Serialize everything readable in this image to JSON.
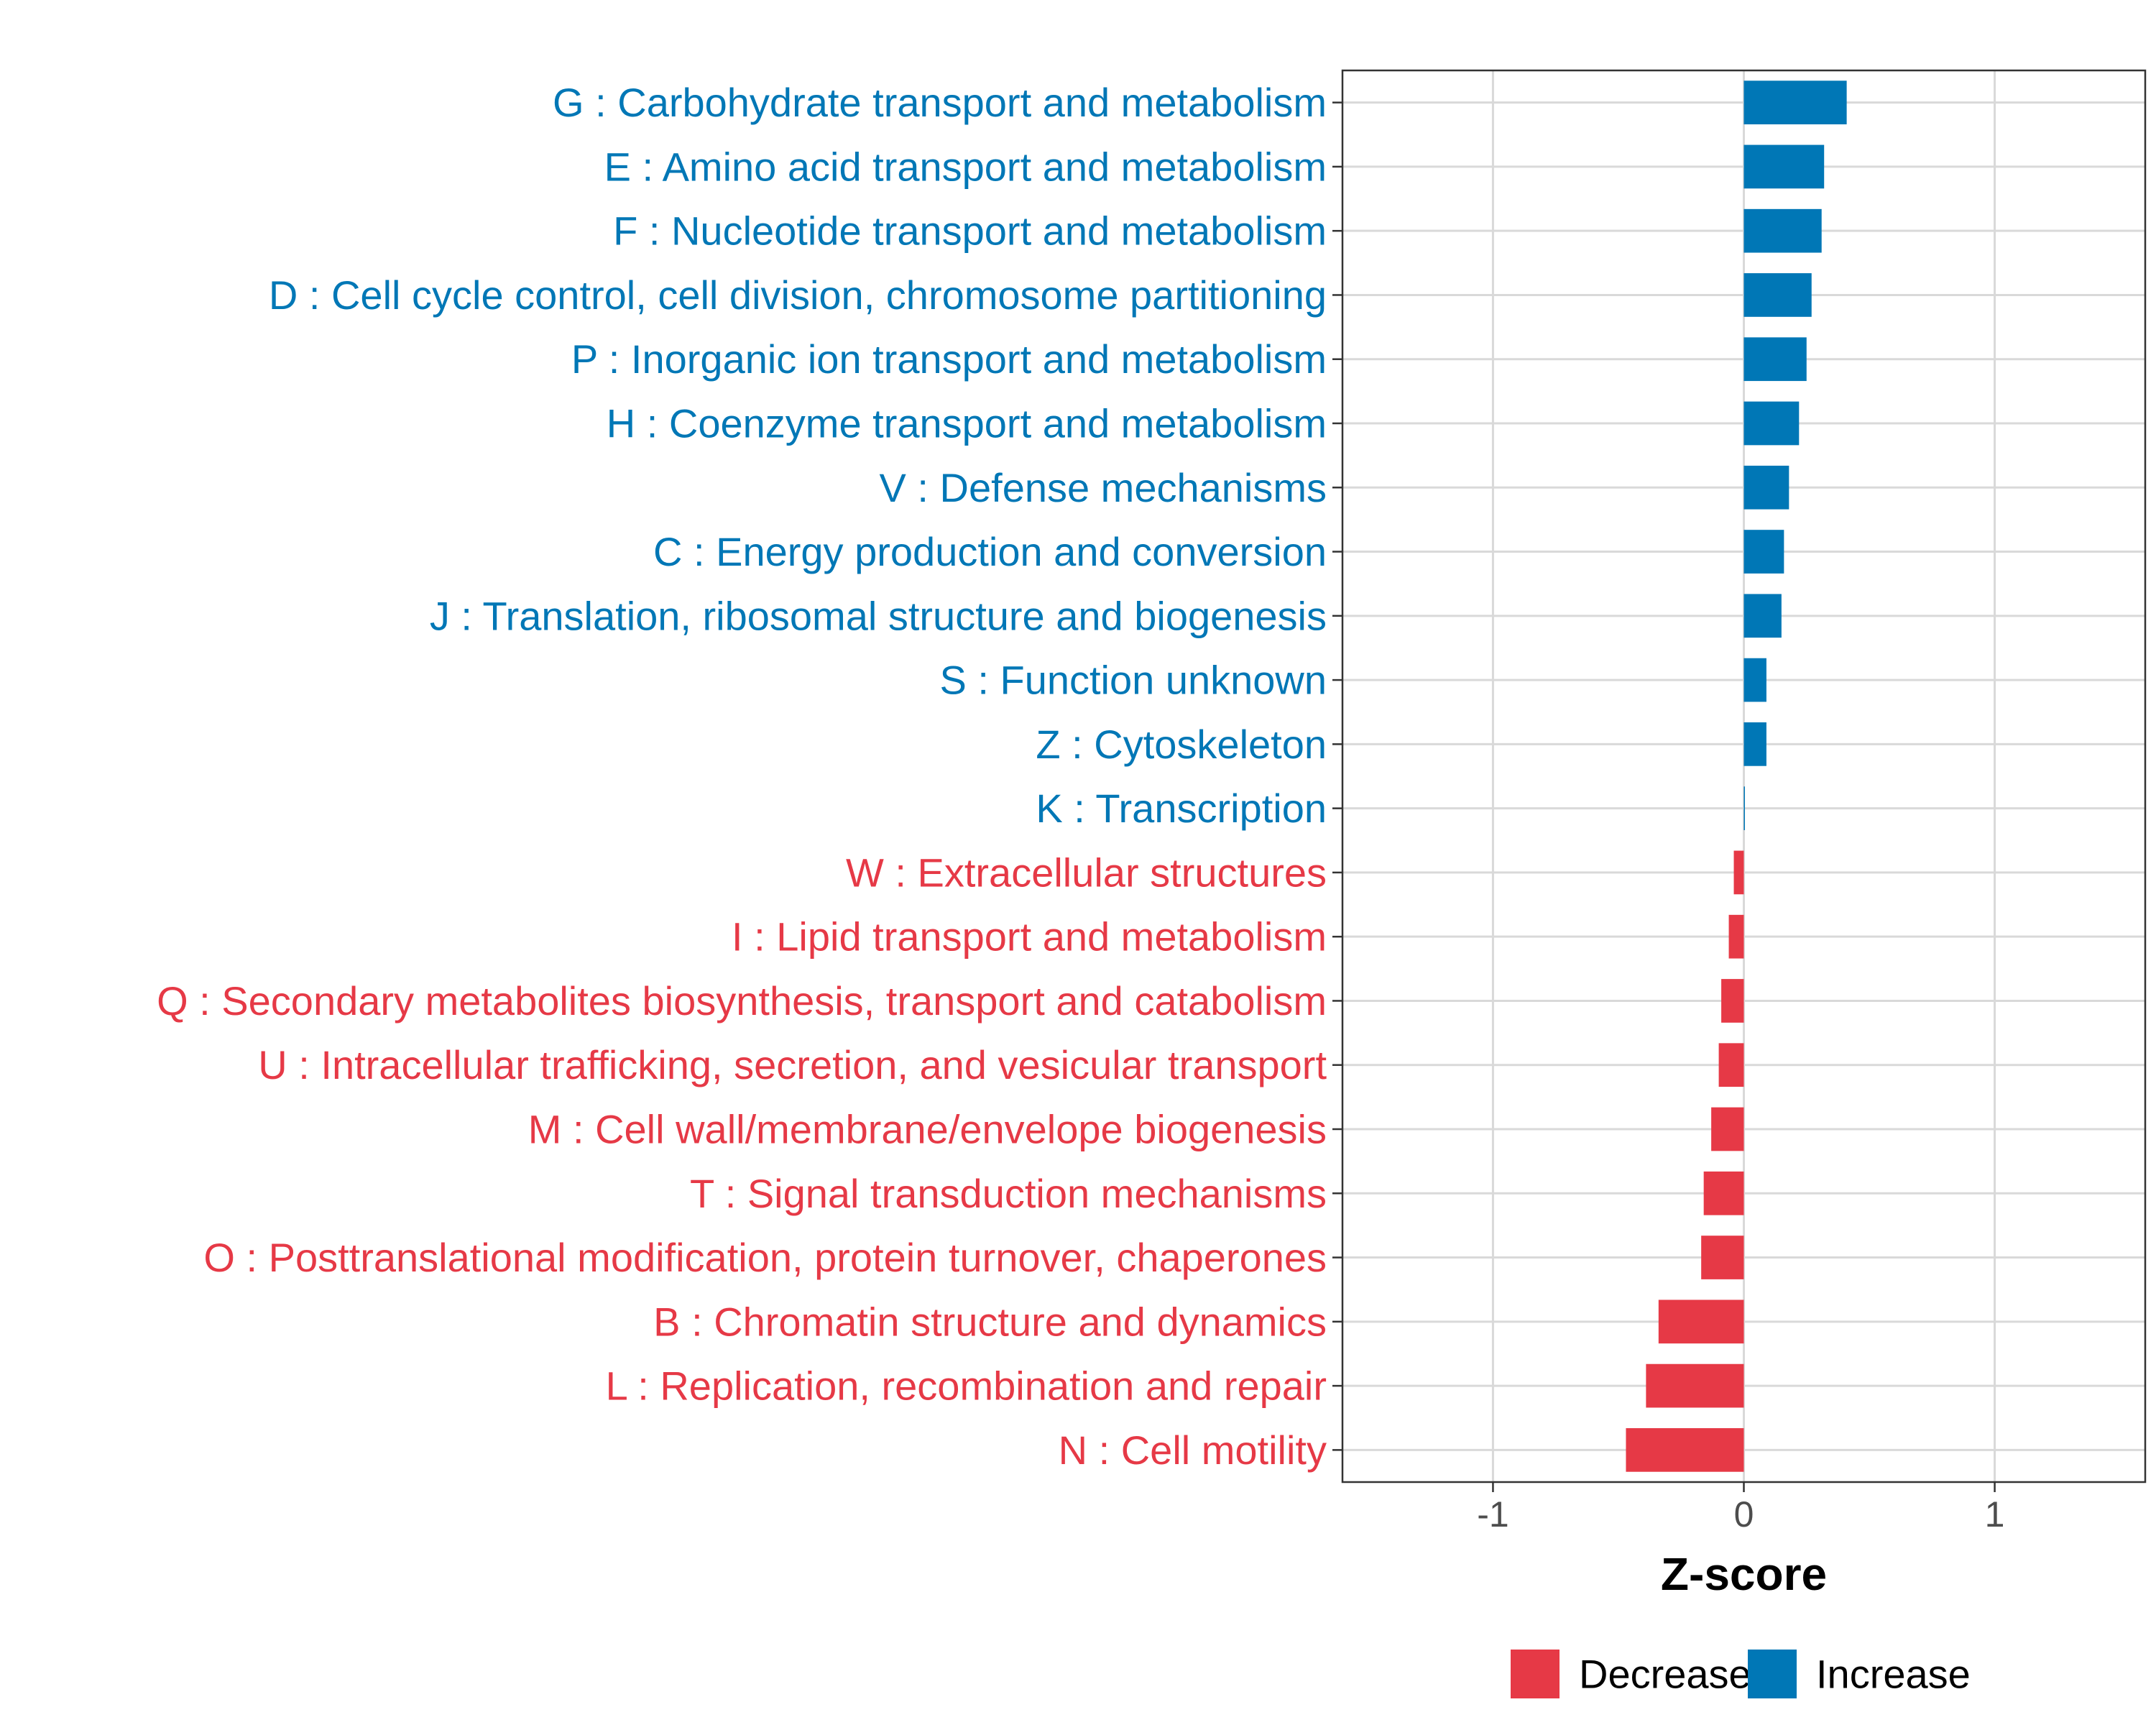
{
  "chart_data": {
    "type": "bar",
    "orientation": "horizontal",
    "title": "",
    "xlabel": "Z-score",
    "ylabel": "",
    "xlim": [
      -1.6,
      1.6
    ],
    "xticks": [
      -1,
      0,
      1
    ],
    "xtick_labels": [
      "-1",
      "0",
      "1"
    ],
    "grid": true,
    "legend_position": "bottom",
    "colors": {
      "Decrease": "#e63946",
      "Increase": "#0077b6"
    },
    "legend": [
      {
        "name": "Decrease",
        "color": "#e63946"
      },
      {
        "name": "Increase",
        "color": "#0077b6"
      }
    ],
    "categories": [
      "G : Carbohydrate transport and metabolism",
      "E : Amino acid transport and metabolism",
      "F : Nucleotide transport and metabolism",
      "D : Cell cycle control, cell division, chromosome partitioning",
      "P : Inorganic ion transport and metabolism",
      "H : Coenzyme transport and metabolism",
      "V : Defense mechanisms",
      "C : Energy production and conversion",
      "J : Translation, ribosomal structure and biogenesis",
      "S : Function unknown",
      "Z : Cytoskeleton",
      "K : Transcription",
      "W : Extracellular structures",
      "I : Lipid transport and metabolism",
      "Q : Secondary metabolites biosynthesis, transport and catabolism",
      "U : Intracellular trafficking, secretion, and vesicular transport",
      "M : Cell wall/membrane/envelope biogenesis",
      "T : Signal transduction mechanisms",
      "O : Posttranslational modification, protein turnover, chaperones",
      "B : Chromatin structure and dynamics",
      "L : Replication, recombination and repair",
      "N : Cell motility"
    ],
    "values": [
      0.41,
      0.32,
      0.31,
      0.27,
      0.25,
      0.22,
      0.18,
      0.16,
      0.15,
      0.09,
      0.09,
      0.002,
      -0.04,
      -0.06,
      -0.09,
      -0.1,
      -0.13,
      -0.16,
      -0.17,
      -0.34,
      -0.39,
      -0.47
    ],
    "groups": [
      "Increase",
      "Increase",
      "Increase",
      "Increase",
      "Increase",
      "Increase",
      "Increase",
      "Increase",
      "Increase",
      "Increase",
      "Increase",
      "Increase",
      "Decrease",
      "Decrease",
      "Decrease",
      "Decrease",
      "Decrease",
      "Decrease",
      "Decrease",
      "Decrease",
      "Decrease",
      "Decrease"
    ]
  }
}
